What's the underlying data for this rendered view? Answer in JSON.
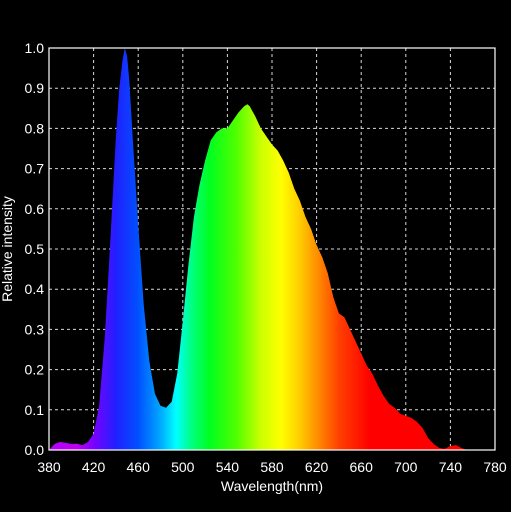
{
  "chart_data": {
    "type": "area",
    "title": "",
    "xlabel": "Wavelength(nm)",
    "ylabel": "Relative intensity",
    "xlim": [
      380,
      780
    ],
    "ylim": [
      0,
      1.0
    ],
    "xticks": [
      380,
      420,
      460,
      500,
      540,
      580,
      620,
      660,
      700,
      740,
      780
    ],
    "yticks": [
      "0.0",
      "0.1",
      "0.2",
      "0.3",
      "0.4",
      "0.5",
      "0.6",
      "0.7",
      "0.8",
      "0.9",
      "1.0"
    ],
    "grid": true,
    "fill": "visible-spectrum color gradient",
    "series": [
      {
        "x": [
          380,
          385,
          390,
          395,
          400,
          405,
          410,
          415,
          420,
          425,
          430,
          435,
          440,
          443,
          446,
          448,
          450,
          452,
          455,
          460,
          465,
          470,
          475,
          480,
          485,
          490,
          495,
          500,
          505,
          510,
          515,
          520,
          525,
          530,
          535,
          540,
          545,
          550,
          555,
          558,
          560,
          565,
          570,
          575,
          580,
          585,
          590,
          595,
          600,
          605,
          610,
          615,
          620,
          625,
          630,
          635,
          640,
          645,
          650,
          655,
          660,
          665,
          670,
          675,
          680,
          685,
          690,
          695,
          700,
          705,
          710,
          715,
          720,
          725,
          730,
          735,
          740,
          745,
          750,
          755,
          760,
          770,
          780
        ],
        "y": [
          0.0,
          0.015,
          0.02,
          0.018,
          0.015,
          0.016,
          0.012,
          0.02,
          0.04,
          0.11,
          0.28,
          0.52,
          0.78,
          0.9,
          0.97,
          1.0,
          0.98,
          0.92,
          0.78,
          0.56,
          0.36,
          0.22,
          0.14,
          0.11,
          0.105,
          0.12,
          0.19,
          0.32,
          0.46,
          0.58,
          0.66,
          0.72,
          0.77,
          0.79,
          0.8,
          0.8,
          0.82,
          0.84,
          0.855,
          0.86,
          0.855,
          0.83,
          0.8,
          0.78,
          0.76,
          0.745,
          0.72,
          0.69,
          0.65,
          0.62,
          0.58,
          0.55,
          0.51,
          0.48,
          0.44,
          0.38,
          0.34,
          0.33,
          0.3,
          0.27,
          0.24,
          0.21,
          0.19,
          0.16,
          0.135,
          0.115,
          0.105,
          0.09,
          0.085,
          0.08,
          0.07,
          0.055,
          0.03,
          0.015,
          0.005,
          0.003,
          0.01,
          0.012,
          0.005,
          0.0,
          0.0,
          0.0,
          0.0
        ]
      }
    ]
  }
}
